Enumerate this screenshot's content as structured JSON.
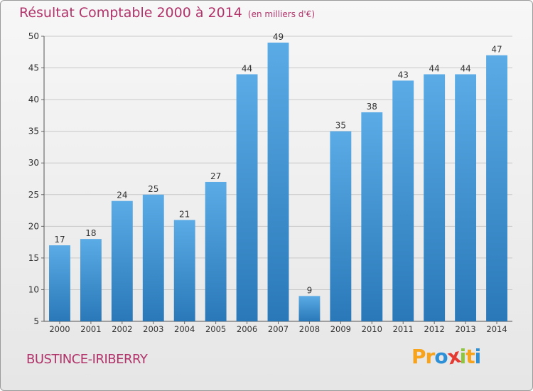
{
  "header": {
    "title": "Résultat Comptable 2000 à 2014",
    "unit": "(en milliers d'€)"
  },
  "footer": {
    "commune": "BUSTINCE-IRIBERRY",
    "logo_letters": [
      "P",
      "r",
      "o",
      "x",
      "i",
      "t",
      "i"
    ],
    "logo_colors": [
      "#f7a31c",
      "#f7a31c",
      "#2d8fd5",
      "#e53a31",
      "#8dc63f",
      "#f7a31c",
      "#2d8fd5"
    ]
  },
  "colors": {
    "title": "#b0336a",
    "bar_light": "#5aabe6",
    "bar_dark": "#2a78b8",
    "grid": "#c8c8c8",
    "axis_text": "#333333"
  },
  "chart_data": {
    "type": "bar",
    "categories": [
      "2000",
      "2001",
      "2002",
      "2003",
      "2004",
      "2005",
      "2006",
      "2007",
      "2008",
      "2009",
      "2010",
      "2011",
      "2012",
      "2013",
      "2014"
    ],
    "values": [
      17,
      18,
      24,
      25,
      21,
      27,
      44,
      49,
      9,
      35,
      38,
      43,
      44,
      44,
      47
    ],
    "ylim": [
      5,
      50
    ],
    "yticks": [
      5,
      10,
      15,
      20,
      25,
      30,
      35,
      40,
      45,
      50
    ],
    "grid": true
  }
}
